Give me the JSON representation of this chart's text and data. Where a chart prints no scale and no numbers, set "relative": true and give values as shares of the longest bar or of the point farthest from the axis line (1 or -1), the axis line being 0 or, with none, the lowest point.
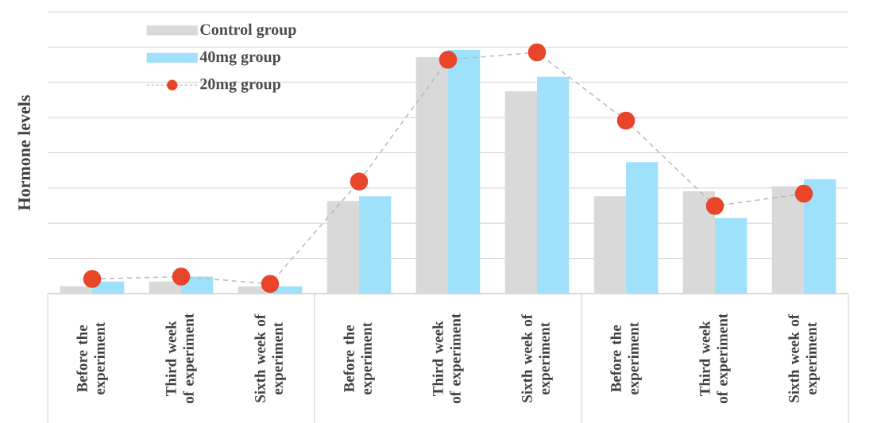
{
  "chart_data": {
    "type": "bar",
    "relative": true,
    "ylabel": "Hormone levels",
    "grid": "y",
    "legend": "top left",
    "categories": [
      "Before the experiment",
      "Third week of experiment",
      "Sixth week of experiment",
      "Before the experiment",
      "Third week of experiment",
      "Sixth week of experiment",
      "Before the experiment",
      "Third week of experiment",
      "Sixth week of experiment"
    ],
    "series": [
      {
        "name": "Control group",
        "color": "#d9d9d9",
        "values": [
          0.03,
          0.05,
          0.03,
          0.38,
          0.97,
          0.83,
          0.4,
          0.42,
          0.44
        ]
      },
      {
        "name": "40mg group",
        "color": "#9fe0fa",
        "values": [
          0.05,
          0.07,
          0.03,
          0.4,
          1,
          0.89,
          0.54,
          0.31,
          0.47
        ]
      },
      {
        "name": "20mg group",
        "type": "line",
        "marker": "circle",
        "line_style": "dashed",
        "color": "#e8452a",
        "values": [
          0.06,
          0.07,
          0.04,
          0.46,
          0.96,
          0.99,
          0.71,
          0.36,
          0.41
        ]
      }
    ]
  }
}
